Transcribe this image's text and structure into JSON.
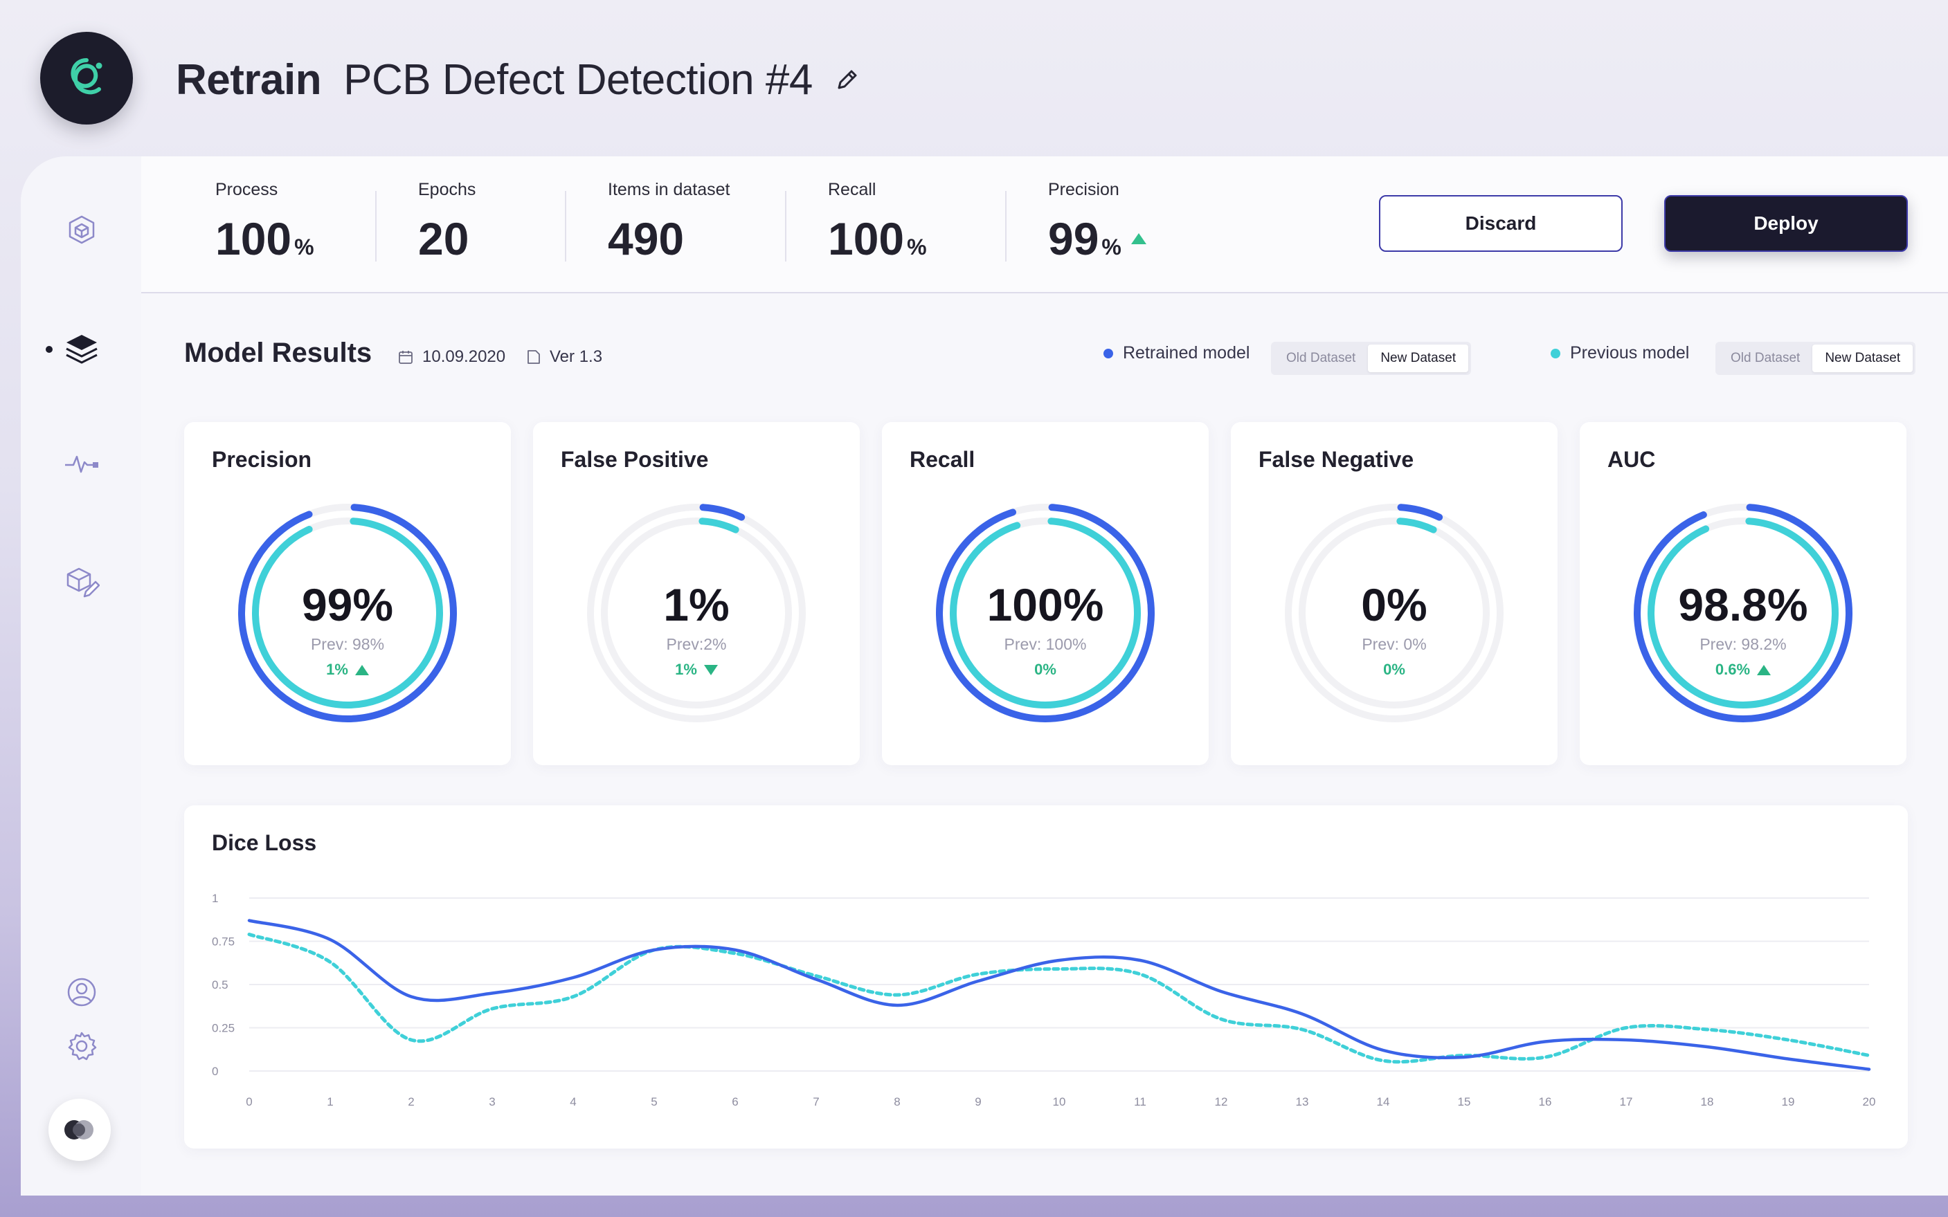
{
  "header": {
    "title_strong": "Retrain",
    "title_name": "PCB Defect Detection #4"
  },
  "sidebar": {
    "items": [
      "cube-icon",
      "layers-icon",
      "pulse-icon",
      "model-edit-icon",
      "user-icon",
      "gear-icon"
    ],
    "active_index": 1
  },
  "stats": [
    {
      "label": "Process",
      "value": "100",
      "unit": "%"
    },
    {
      "label": "Epochs",
      "value": "20",
      "unit": ""
    },
    {
      "label": "Items in dataset",
      "value": "490",
      "unit": ""
    },
    {
      "label": "Recall",
      "value": "100",
      "unit": "%"
    },
    {
      "label": "Precision",
      "value": "99",
      "unit": "%",
      "trend": "up"
    }
  ],
  "actions": {
    "discard": "Discard",
    "deploy": "Deploy"
  },
  "results": {
    "title": "Model Results",
    "date": "10.09.2020",
    "version": "Ver 1.3",
    "retrained_label": "Retrained model",
    "previous_label": "Previous model",
    "seg_old": "Old Dataset",
    "seg_new": "New Dataset",
    "selected": "New Dataset"
  },
  "colors": {
    "retrained": "#3a63e8",
    "previous": "#3fd0d8",
    "positive": "#2ab484",
    "dark": "#1b1a2e"
  },
  "metrics": [
    {
      "title": "Precision",
      "value": "99%",
      "prev": "Prev: 98%",
      "delta": "1%",
      "trend": "up",
      "current": 0.99,
      "previous": 0.98
    },
    {
      "title": "False Positive",
      "value": "1%",
      "prev": "Prev:2%",
      "delta": "1%",
      "trend": "down",
      "current": 0.01,
      "previous": 0.02
    },
    {
      "title": "Recall",
      "value": "100%",
      "prev": "Prev: 100%",
      "delta": "0%",
      "trend": "none",
      "current": 1.0,
      "previous": 1.0
    },
    {
      "title": "False Negative",
      "value": "0%",
      "prev": "Prev: 0%",
      "delta": "0%",
      "trend": "none",
      "current": 0.0,
      "previous": 0.0
    },
    {
      "title": "AUC",
      "value": "98.8%",
      "prev": "Prev: 98.2%",
      "delta": "0.6%",
      "trend": "up",
      "current": 0.988,
      "previous": 0.982
    }
  ],
  "chart_data": {
    "type": "line",
    "title": "Dice Loss",
    "xlabel": "",
    "ylabel": "",
    "x": [
      0,
      1,
      2,
      3,
      4,
      5,
      6,
      7,
      8,
      9,
      10,
      11,
      12,
      13,
      14,
      15,
      16,
      17,
      18,
      19,
      20
    ],
    "yticks": [
      "1",
      "0.75",
      "0.5",
      "0.25",
      "0"
    ],
    "ylim": [
      0,
      1
    ],
    "grid": true,
    "series": [
      {
        "name": "Retrained model",
        "style": "solid",
        "values": [
          0.87,
          0.76,
          0.43,
          0.45,
          0.54,
          0.7,
          0.7,
          0.53,
          0.38,
          0.52,
          0.64,
          0.64,
          0.46,
          0.33,
          0.12,
          0.08,
          0.17,
          0.18,
          0.14,
          0.07,
          0.01
        ]
      },
      {
        "name": "Previous model",
        "style": "dashed",
        "values": [
          0.79,
          0.63,
          0.18,
          0.36,
          0.43,
          0.7,
          0.68,
          0.55,
          0.44,
          0.56,
          0.59,
          0.56,
          0.3,
          0.24,
          0.06,
          0.09,
          0.08,
          0.25,
          0.24,
          0.18,
          0.09
        ]
      }
    ]
  }
}
